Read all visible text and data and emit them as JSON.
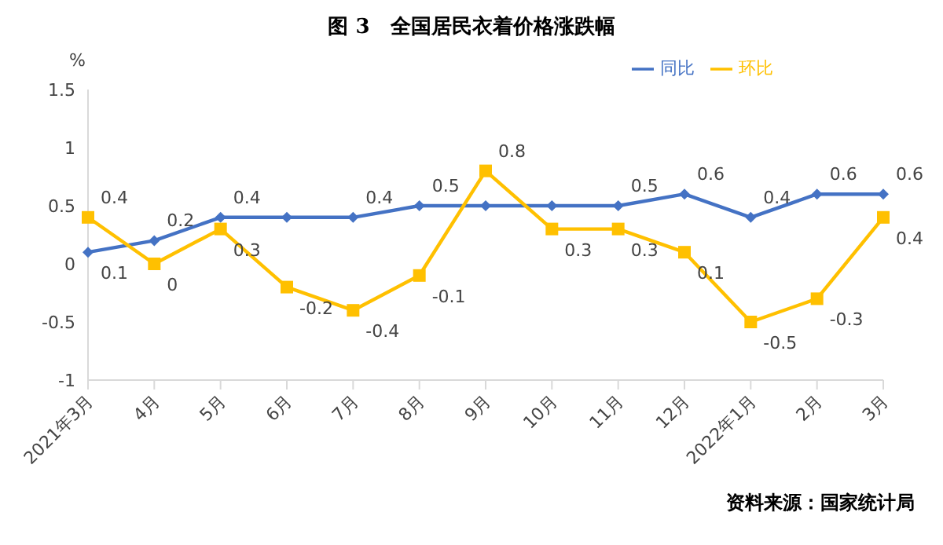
{
  "chart_data": {
    "type": "line",
    "title": "图 3　全国居民衣着价格涨跌幅",
    "ylabel": "%",
    "annotations": [
      "资料来源：国家统计局"
    ],
    "categories": [
      "2021年3月",
      "4月",
      "5月",
      "6月",
      "7月",
      "8月",
      "9月",
      "10月",
      "11月",
      "12月",
      "2022年1月",
      "2月",
      "3月"
    ],
    "series": [
      {
        "name": "同比",
        "color": "#4472c4",
        "marker": "diamond",
        "values": [
          0.1,
          0.2,
          0.4,
          0.4,
          0.4,
          0.5,
          0.5,
          0.5,
          0.5,
          0.6,
          0.4,
          0.6,
          0.6
        ],
        "value_labels": [
          "0.1",
          "0.2",
          "0.4",
          null,
          "0.4",
          "0.5",
          null,
          null,
          "0.5",
          "0.6",
          "0.4",
          "0.6",
          "0.6"
        ]
      },
      {
        "name": "环比",
        "color": "#ffc000",
        "marker": "square",
        "values": [
          0.4,
          0,
          0.3,
          -0.2,
          -0.4,
          -0.1,
          0.8,
          0.3,
          0.3,
          0.1,
          -0.5,
          -0.3,
          0.4
        ],
        "value_labels": [
          "0.4",
          "0",
          "0.3",
          "-0.2",
          "-0.4",
          "-0.1",
          "0.8",
          "0.3",
          "0.3",
          "0.1",
          "-0.5",
          "-0.3",
          "0.4"
        ]
      }
    ],
    "ylim": [
      -1,
      1.5
    ],
    "yticks": [
      -1,
      -0.5,
      0,
      0.5,
      1,
      1.5
    ],
    "grid": false,
    "legend": "top right",
    "line_style": "solid"
  }
}
